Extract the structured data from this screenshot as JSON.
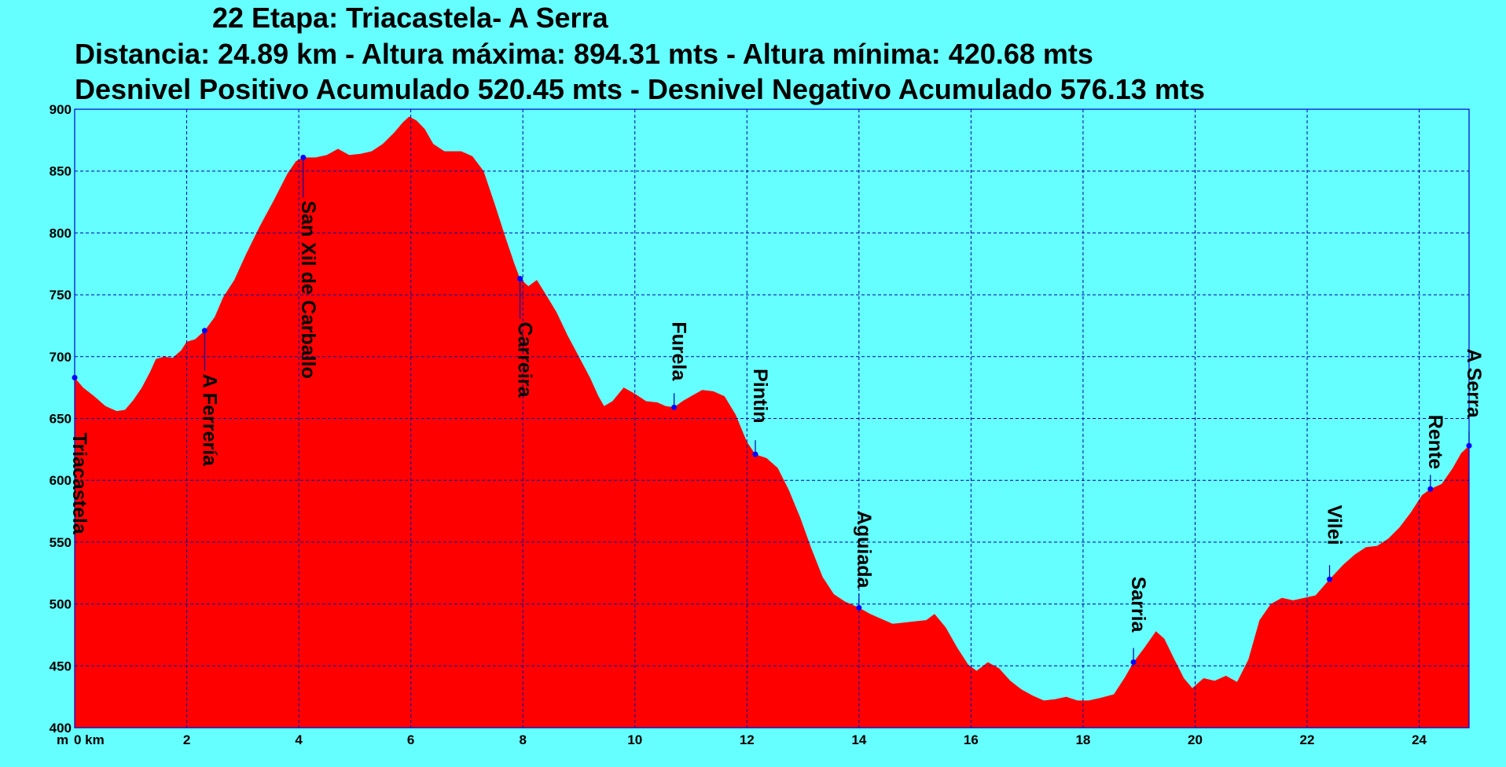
{
  "chart_data": {
    "type": "area",
    "title": "22 Etapa: Triacastela- A Serra",
    "subtitle_lines": [
      "Distancia: 24.89 km - Altura máxima: 894.31 mts - Altura mínima: 420.68 mts",
      "Desnivel Positivo Acumulado 520.45 mts - Desnivel Negativo Acumulado 576.13 mts"
    ],
    "y_unit_label": "m",
    "x_unit_label": "0 km",
    "xlim": [
      0,
      24.89
    ],
    "ylim": [
      400,
      900
    ],
    "x_ticks": [
      2,
      4,
      6,
      8,
      10,
      12,
      14,
      16,
      18,
      20,
      22,
      24
    ],
    "y_ticks": [
      400,
      450,
      500,
      550,
      600,
      650,
      700,
      750,
      800,
      850,
      900
    ],
    "grid": true,
    "colors": {
      "background": "#66ffff",
      "fill": "#ff0000",
      "grid": "#0000aa",
      "marker": "#0000ff"
    },
    "profile": [
      [
        0,
        683
      ],
      [
        0.15,
        675
      ],
      [
        0.35,
        668
      ],
      [
        0.55,
        660
      ],
      [
        0.75,
        656
      ],
      [
        0.9,
        657
      ],
      [
        1.05,
        665
      ],
      [
        1.2,
        675
      ],
      [
        1.35,
        688
      ],
      [
        1.45,
        698
      ],
      [
        1.6,
        700
      ],
      [
        1.75,
        699
      ],
      [
        1.9,
        705
      ],
      [
        2.0,
        712
      ],
      [
        2.15,
        714
      ],
      [
        2.32,
        721
      ],
      [
        2.5,
        732
      ],
      [
        2.65,
        748
      ],
      [
        2.85,
        762
      ],
      [
        3.05,
        782
      ],
      [
        3.3,
        805
      ],
      [
        3.55,
        826
      ],
      [
        3.8,
        848
      ],
      [
        3.95,
        858
      ],
      [
        4.08,
        861
      ],
      [
        4.3,
        861
      ],
      [
        4.5,
        863
      ],
      [
        4.7,
        868
      ],
      [
        4.9,
        863
      ],
      [
        5.1,
        864
      ],
      [
        5.3,
        866
      ],
      [
        5.5,
        872
      ],
      [
        5.7,
        881
      ],
      [
        5.85,
        889
      ],
      [
        5.97,
        894
      ],
      [
        6.1,
        891
      ],
      [
        6.25,
        884
      ],
      [
        6.4,
        872
      ],
      [
        6.6,
        866
      ],
      [
        6.9,
        866
      ],
      [
        7.1,
        862
      ],
      [
        7.3,
        850
      ],
      [
        7.5,
        823
      ],
      [
        7.7,
        795
      ],
      [
        7.85,
        775
      ],
      [
        7.95,
        763
      ],
      [
        8.1,
        757
      ],
      [
        8.25,
        762
      ],
      [
        8.4,
        751
      ],
      [
        8.6,
        736
      ],
      [
        8.8,
        717
      ],
      [
        9.0,
        700
      ],
      [
        9.2,
        683
      ],
      [
        9.35,
        668
      ],
      [
        9.45,
        660
      ],
      [
        9.6,
        664
      ],
      [
        9.8,
        675
      ],
      [
        10.0,
        670
      ],
      [
        10.2,
        664
      ],
      [
        10.4,
        663
      ],
      [
        10.55,
        660
      ],
      [
        10.7,
        659
      ],
      [
        10.85,
        664
      ],
      [
        11.0,
        668
      ],
      [
        11.2,
        673
      ],
      [
        11.4,
        672
      ],
      [
        11.6,
        668
      ],
      [
        11.8,
        653
      ],
      [
        12.0,
        631
      ],
      [
        12.15,
        621
      ],
      [
        12.35,
        618
      ],
      [
        12.55,
        610
      ],
      [
        12.75,
        592
      ],
      [
        12.95,
        570
      ],
      [
        13.15,
        545
      ],
      [
        13.35,
        522
      ],
      [
        13.55,
        508
      ],
      [
        13.75,
        502
      ],
      [
        14.0,
        497
      ],
      [
        14.2,
        492
      ],
      [
        14.4,
        488
      ],
      [
        14.6,
        484
      ],
      [
        14.8,
        485
      ],
      [
        15.0,
        486
      ],
      [
        15.2,
        487
      ],
      [
        15.35,
        492
      ],
      [
        15.55,
        481
      ],
      [
        15.75,
        465
      ],
      [
        15.95,
        451
      ],
      [
        16.1,
        446
      ],
      [
        16.3,
        453
      ],
      [
        16.5,
        448
      ],
      [
        16.7,
        438
      ],
      [
        16.9,
        431
      ],
      [
        17.1,
        426
      ],
      [
        17.3,
        422
      ],
      [
        17.5,
        423
      ],
      [
        17.7,
        425
      ],
      [
        17.9,
        422
      ],
      [
        18.1,
        422
      ],
      [
        18.3,
        424
      ],
      [
        18.55,
        427
      ],
      [
        18.75,
        441
      ],
      [
        18.9,
        453
      ],
      [
        19.1,
        465
      ],
      [
        19.3,
        478
      ],
      [
        19.45,
        472
      ],
      [
        19.6,
        458
      ],
      [
        19.8,
        440
      ],
      [
        19.95,
        432
      ],
      [
        20.15,
        440
      ],
      [
        20.35,
        438
      ],
      [
        20.55,
        442
      ],
      [
        20.75,
        437
      ],
      [
        20.95,
        455
      ],
      [
        21.15,
        487
      ],
      [
        21.35,
        500
      ],
      [
        21.55,
        505
      ],
      [
        21.75,
        503
      ],
      [
        21.95,
        505
      ],
      [
        22.15,
        507
      ],
      [
        22.4,
        520
      ],
      [
        22.65,
        532
      ],
      [
        22.85,
        540
      ],
      [
        23.05,
        546
      ],
      [
        23.25,
        547
      ],
      [
        23.45,
        553
      ],
      [
        23.65,
        562
      ],
      [
        23.85,
        574
      ],
      [
        24.05,
        588
      ],
      [
        24.2,
        593
      ],
      [
        24.4,
        597
      ],
      [
        24.6,
        610
      ],
      [
        24.75,
        622
      ],
      [
        24.89,
        628
      ]
    ],
    "waypoints": [
      {
        "name": "Triacastela",
        "x": 0.0,
        "y": 683
      },
      {
        "name": "A Ferrería",
        "x": 2.32,
        "y": 721
      },
      {
        "name": "San Xil de Carballo",
        "x": 4.08,
        "y": 861
      },
      {
        "name": "Carreira",
        "x": 7.95,
        "y": 763
      },
      {
        "name": "Furela",
        "x": 10.7,
        "y": 659
      },
      {
        "name": "Pintin",
        "x": 12.15,
        "y": 621
      },
      {
        "name": "Aguiada",
        "x": 14.0,
        "y": 497
      },
      {
        "name": "Sarria",
        "x": 18.9,
        "y": 453
      },
      {
        "name": "Vilei",
        "x": 22.4,
        "y": 520
      },
      {
        "name": "Rente",
        "x": 24.2,
        "y": 593
      },
      {
        "name": "A Serra",
        "x": 24.89,
        "y": 628
      }
    ]
  }
}
